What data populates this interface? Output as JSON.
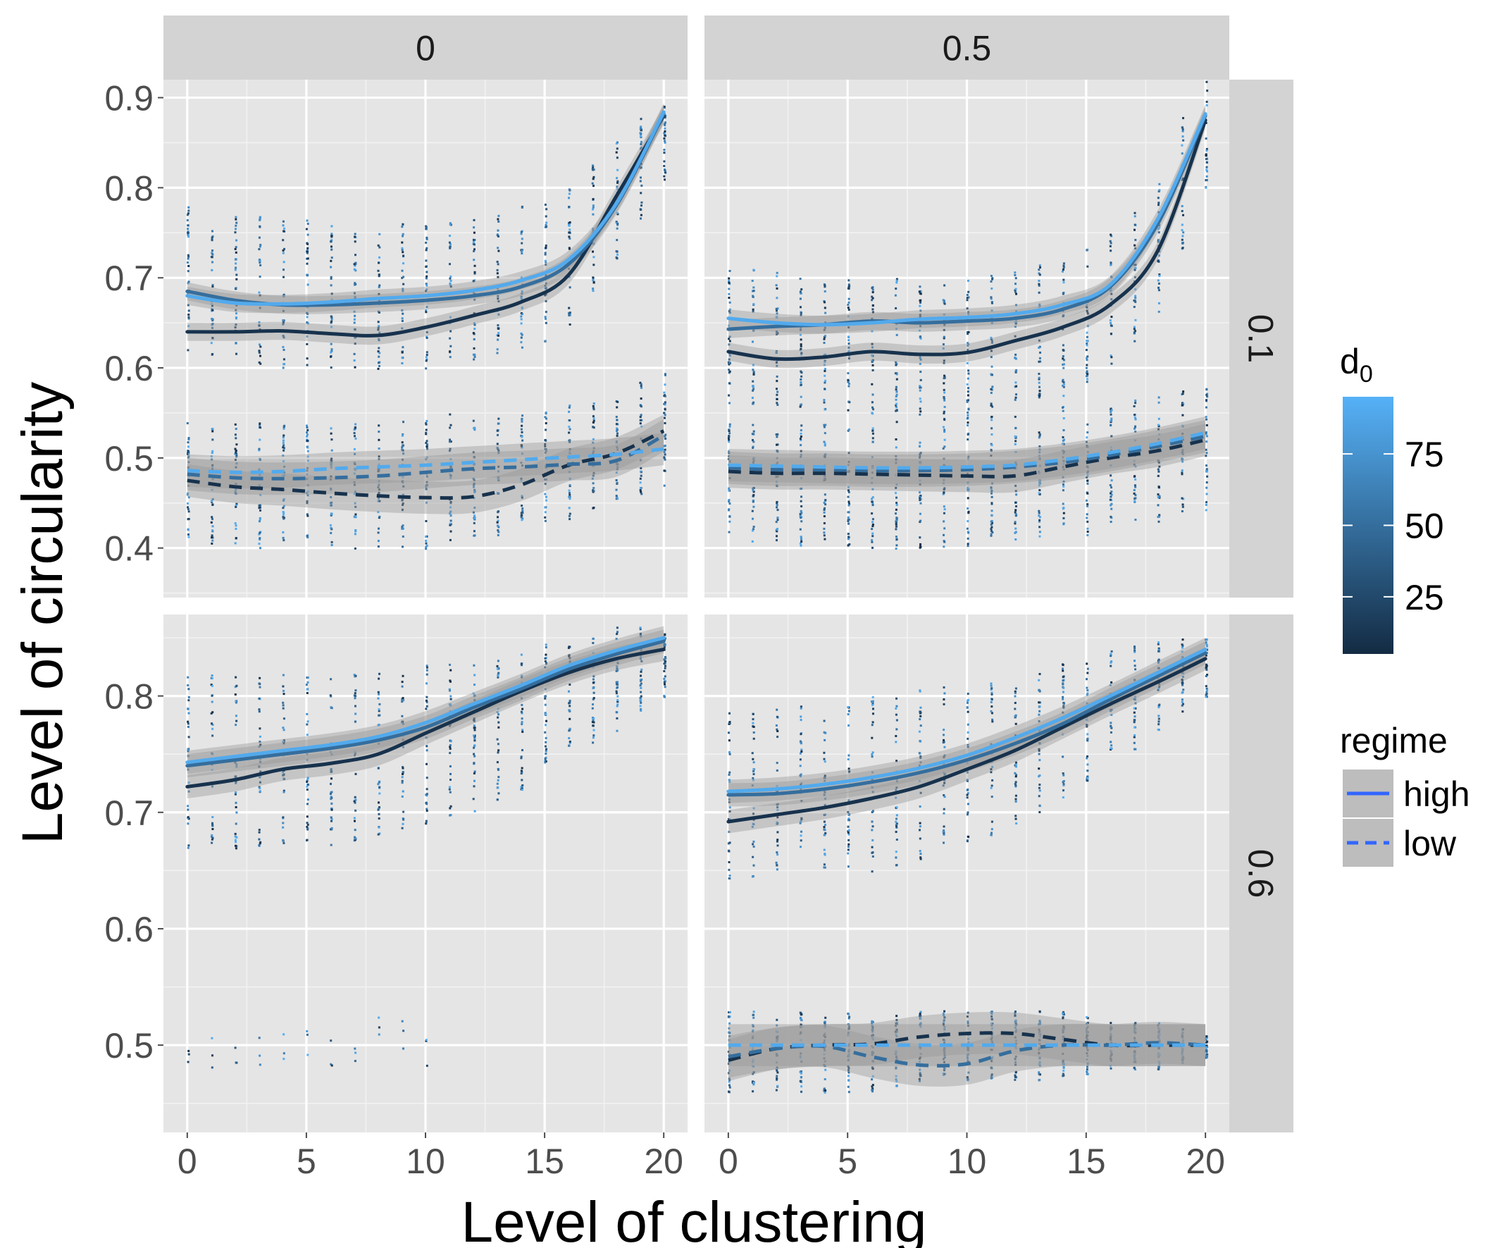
{
  "chart_data": {
    "type": "scatter",
    "xlabel": "Level of clustering",
    "ylabel": "Level of circularity",
    "x_ticks": [
      0,
      5,
      10,
      15,
      20
    ],
    "xlim": [
      -1,
      21
    ],
    "facets": {
      "columns": [
        "0",
        "0.5"
      ],
      "rows": [
        "0.1",
        "0.6"
      ]
    },
    "rows_meta": [
      {
        "label": "0.1",
        "ylim": [
          0.345,
          0.92
        ],
        "y_ticks": [
          0.4,
          0.5,
          0.6,
          0.7,
          0.8,
          0.9
        ],
        "y_tick_labels": [
          "0.4",
          "0.5",
          "0.6",
          "0.7",
          "0.8",
          "0.9"
        ]
      },
      {
        "label": "0.6",
        "ylim": [
          0.425,
          0.87
        ],
        "y_ticks": [
          0.5,
          0.6,
          0.7,
          0.8
        ],
        "y_tick_labels": [
          "0.5",
          "0.6",
          "0.7",
          "0.8"
        ]
      }
    ],
    "color_scale": {
      "title": "d",
      "title_subscript": "0",
      "low": "#132b43",
      "high": "#56b1f7",
      "range": [
        5,
        95
      ],
      "breaks": [
        25,
        50,
        75
      ],
      "break_labels": [
        "25",
        "50",
        "75"
      ]
    },
    "linetype_legend": {
      "title": "regime",
      "entries": [
        {
          "label": "high",
          "linetype": "solid",
          "color": "#3366ff"
        },
        {
          "label": "low",
          "linetype": "dashed",
          "color": "#3366ff"
        }
      ]
    },
    "x_smooth": [
      0,
      2,
      4,
      6,
      8,
      10,
      12,
      14,
      16,
      18,
      20
    ],
    "panels": [
      {
        "column": "0",
        "row": "0.1",
        "scatter_bands": [
          {
            "regime": "high",
            "ymin": [
              0.62,
              0.61,
              0.6,
              0.6,
              0.6,
              0.6,
              0.61,
              0.62,
              0.64,
              0.72,
              0.81
            ],
            "ymax": [
              0.78,
              0.77,
              0.77,
              0.76,
              0.76,
              0.77,
              0.77,
              0.78,
              0.8,
              0.86,
              0.9
            ]
          },
          {
            "regime": "low",
            "ymin": [
              0.41,
              0.4,
              0.4,
              0.4,
              0.4,
              0.4,
              0.41,
              0.42,
              0.43,
              0.45,
              0.47
            ],
            "ymax": [
              0.54,
              0.54,
              0.54,
              0.54,
              0.54,
              0.55,
              0.55,
              0.55,
              0.56,
              0.57,
              0.6
            ]
          }
        ],
        "fits": [
          {
            "regime": "high",
            "d0": 10,
            "y": [
              0.64,
              0.64,
              0.641,
              0.638,
              0.636,
              0.645,
              0.658,
              0.673,
              0.703,
              0.79,
              0.88
            ]
          },
          {
            "regime": "high",
            "d0": 50,
            "y": [
              0.685,
              0.675,
              0.67,
              0.67,
              0.672,
              0.675,
              0.68,
              0.69,
              0.715,
              0.78,
              0.882
            ]
          },
          {
            "regime": "high",
            "d0": 90,
            "y": [
              0.68,
              0.672,
              0.671,
              0.673,
              0.677,
              0.68,
              0.686,
              0.697,
              0.72,
              0.782,
              0.884
            ]
          },
          {
            "regime": "low",
            "d0": 10,
            "y": [
              0.475,
              0.468,
              0.465,
              0.461,
              0.458,
              0.456,
              0.457,
              0.47,
              0.492,
              0.505,
              0.53
            ]
          },
          {
            "regime": "low",
            "d0": 50,
            "y": [
              0.482,
              0.478,
              0.477,
              0.478,
              0.48,
              0.484,
              0.488,
              0.49,
              0.493,
              0.497,
              0.525
            ]
          },
          {
            "regime": "low",
            "d0": 90,
            "y": [
              0.486,
              0.484,
              0.485,
              0.488,
              0.49,
              0.492,
              0.495,
              0.498,
              0.501,
              0.504,
              0.51
            ]
          }
        ]
      },
      {
        "column": "0.5",
        "row": "0.1",
        "scatter_bands": [
          {
            "regime": "high",
            "ymin": [
              0.56,
              0.56,
              0.55,
              0.55,
              0.55,
              0.55,
              0.56,
              0.57,
              0.6,
              0.66,
              0.8
            ]
          },
          {
            "regime": "low",
            "ymin": [
              0.41,
              0.4,
              0.4,
              0.4,
              0.4,
              0.4,
              0.41,
              0.41,
              0.42,
              0.43,
              0.44
            ],
            "ymax": [
              0.54,
              0.54,
              0.54,
              0.54,
              0.55,
              0.55,
              0.55,
              0.56,
              0.56,
              0.57,
              0.58
            ]
          }
        ],
        "fits": [
          {
            "regime": "high",
            "d0": 10,
            "y": [
              0.618,
              0.61,
              0.612,
              0.618,
              0.615,
              0.617,
              0.63,
              0.645,
              0.67,
              0.73,
              0.875
            ]
          },
          {
            "regime": "high",
            "d0": 50,
            "y": [
              0.643,
              0.646,
              0.648,
              0.652,
              0.65,
              0.652,
              0.655,
              0.665,
              0.69,
              0.76,
              0.88
            ]
          },
          {
            "regime": "high",
            "d0": 90,
            "y": [
              0.655,
              0.65,
              0.648,
              0.65,
              0.654,
              0.656,
              0.66,
              0.67,
              0.692,
              0.765,
              0.882
            ]
          },
          {
            "regime": "low",
            "d0": 10,
            "y": [
              0.485,
              0.483,
              0.483,
              0.482,
              0.481,
              0.48,
              0.48,
              0.49,
              0.5,
              0.508,
              0.52
            ]
          },
          {
            "regime": "low",
            "d0": 50,
            "y": [
              0.489,
              0.487,
              0.487,
              0.486,
              0.486,
              0.487,
              0.49,
              0.495,
              0.503,
              0.513,
              0.524
            ]
          },
          {
            "regime": "low",
            "d0": 90,
            "y": [
              0.492,
              0.491,
              0.49,
              0.489,
              0.489,
              0.49,
              0.492,
              0.498,
              0.506,
              0.516,
              0.528
            ]
          }
        ]
      },
      {
        "column": "0",
        "row": "0.6",
        "scatter_bands": [
          {
            "regime": "high",
            "ymin": [
              0.67,
              0.67,
              0.67,
              0.67,
              0.68,
              0.69,
              0.7,
              0.72,
              0.75,
              0.77,
              0.8
            ],
            "ymax": [
              0.82,
              0.82,
              0.82,
              0.82,
              0.82,
              0.83,
              0.83,
              0.84,
              0.85,
              0.86,
              0.86
            ]
          },
          {
            "regime": "low",
            "ymin": [
              0.48,
              0.48,
              0.48,
              0.48,
              0.48,
              0.48
            ],
            "ymax": [
              0.52,
              0.52,
              0.52,
              0.54,
              0.54,
              0.55
            ]
          }
        ],
        "fits": [
          {
            "regime": "high",
            "d0": 10,
            "y": [
              0.722,
              0.728,
              0.737,
              0.742,
              0.75,
              0.768,
              0.786,
              0.804,
              0.82,
              0.832,
              0.84
            ]
          },
          {
            "regime": "high",
            "d0": 50,
            "y": [
              0.74,
              0.745,
              0.75,
              0.755,
              0.762,
              0.773,
              0.79,
              0.806,
              0.823,
              0.836,
              0.847
            ]
          },
          {
            "regime": "high",
            "d0": 90,
            "y": [
              0.743,
              0.748,
              0.753,
              0.758,
              0.765,
              0.777,
              0.793,
              0.809,
              0.826,
              0.839,
              0.85
            ]
          }
        ]
      },
      {
        "column": "0.5",
        "row": "0.6",
        "scatter_bands": [
          {
            "regime": "high",
            "ymin": [
              0.64,
              0.65,
              0.65,
              0.65,
              0.66,
              0.67,
              0.69,
              0.71,
              0.74,
              0.77,
              0.8
            ],
            "ymax": [
              0.79,
              0.79,
              0.8,
              0.8,
              0.81,
              0.81,
              0.82,
              0.83,
              0.84,
              0.85,
              0.85
            ]
          },
          {
            "regime": "low",
            "ymin": [
              0.46,
              0.46,
              0.46,
              0.46,
              0.47,
              0.47,
              0.47,
              0.47,
              0.48,
              0.48,
              0.49
            ],
            "ymax": [
              0.53,
              0.53,
              0.53,
              0.53,
              0.53,
              0.53,
              0.53,
              0.53,
              0.52,
              0.52,
              0.51
            ]
          }
        ],
        "fits": [
          {
            "regime": "high",
            "d0": 10,
            "y": [
              0.692,
              0.698,
              0.704,
              0.712,
              0.722,
              0.737,
              0.753,
              0.773,
              0.793,
              0.812,
              0.832
            ]
          },
          {
            "regime": "high",
            "d0": 50,
            "y": [
              0.715,
              0.716,
              0.72,
              0.726,
              0.734,
              0.745,
              0.759,
              0.776,
              0.797,
              0.817,
              0.837
            ]
          },
          {
            "regime": "high",
            "d0": 90,
            "y": [
              0.718,
              0.72,
              0.724,
              0.73,
              0.738,
              0.749,
              0.764,
              0.781,
              0.8,
              0.82,
              0.84
            ]
          },
          {
            "regime": "low",
            "d0": 10,
            "y": [
              0.487,
              0.497,
              0.5,
              0.501,
              0.507,
              0.51,
              0.51,
              0.505,
              0.5,
              0.5,
              0.5
            ]
          },
          {
            "regime": "low",
            "d0": 50,
            "y": [
              0.49,
              0.497,
              0.499,
              0.49,
              0.483,
              0.484,
              0.495,
              0.5,
              0.5,
              0.502,
              0.5
            ]
          },
          {
            "regime": "low",
            "d0": 90,
            "y": [
              0.5,
              0.5,
              0.5,
              0.5,
              0.5,
              0.5,
              0.5,
              0.5,
              0.5,
              0.5,
              0.5
            ]
          }
        ]
      }
    ]
  }
}
